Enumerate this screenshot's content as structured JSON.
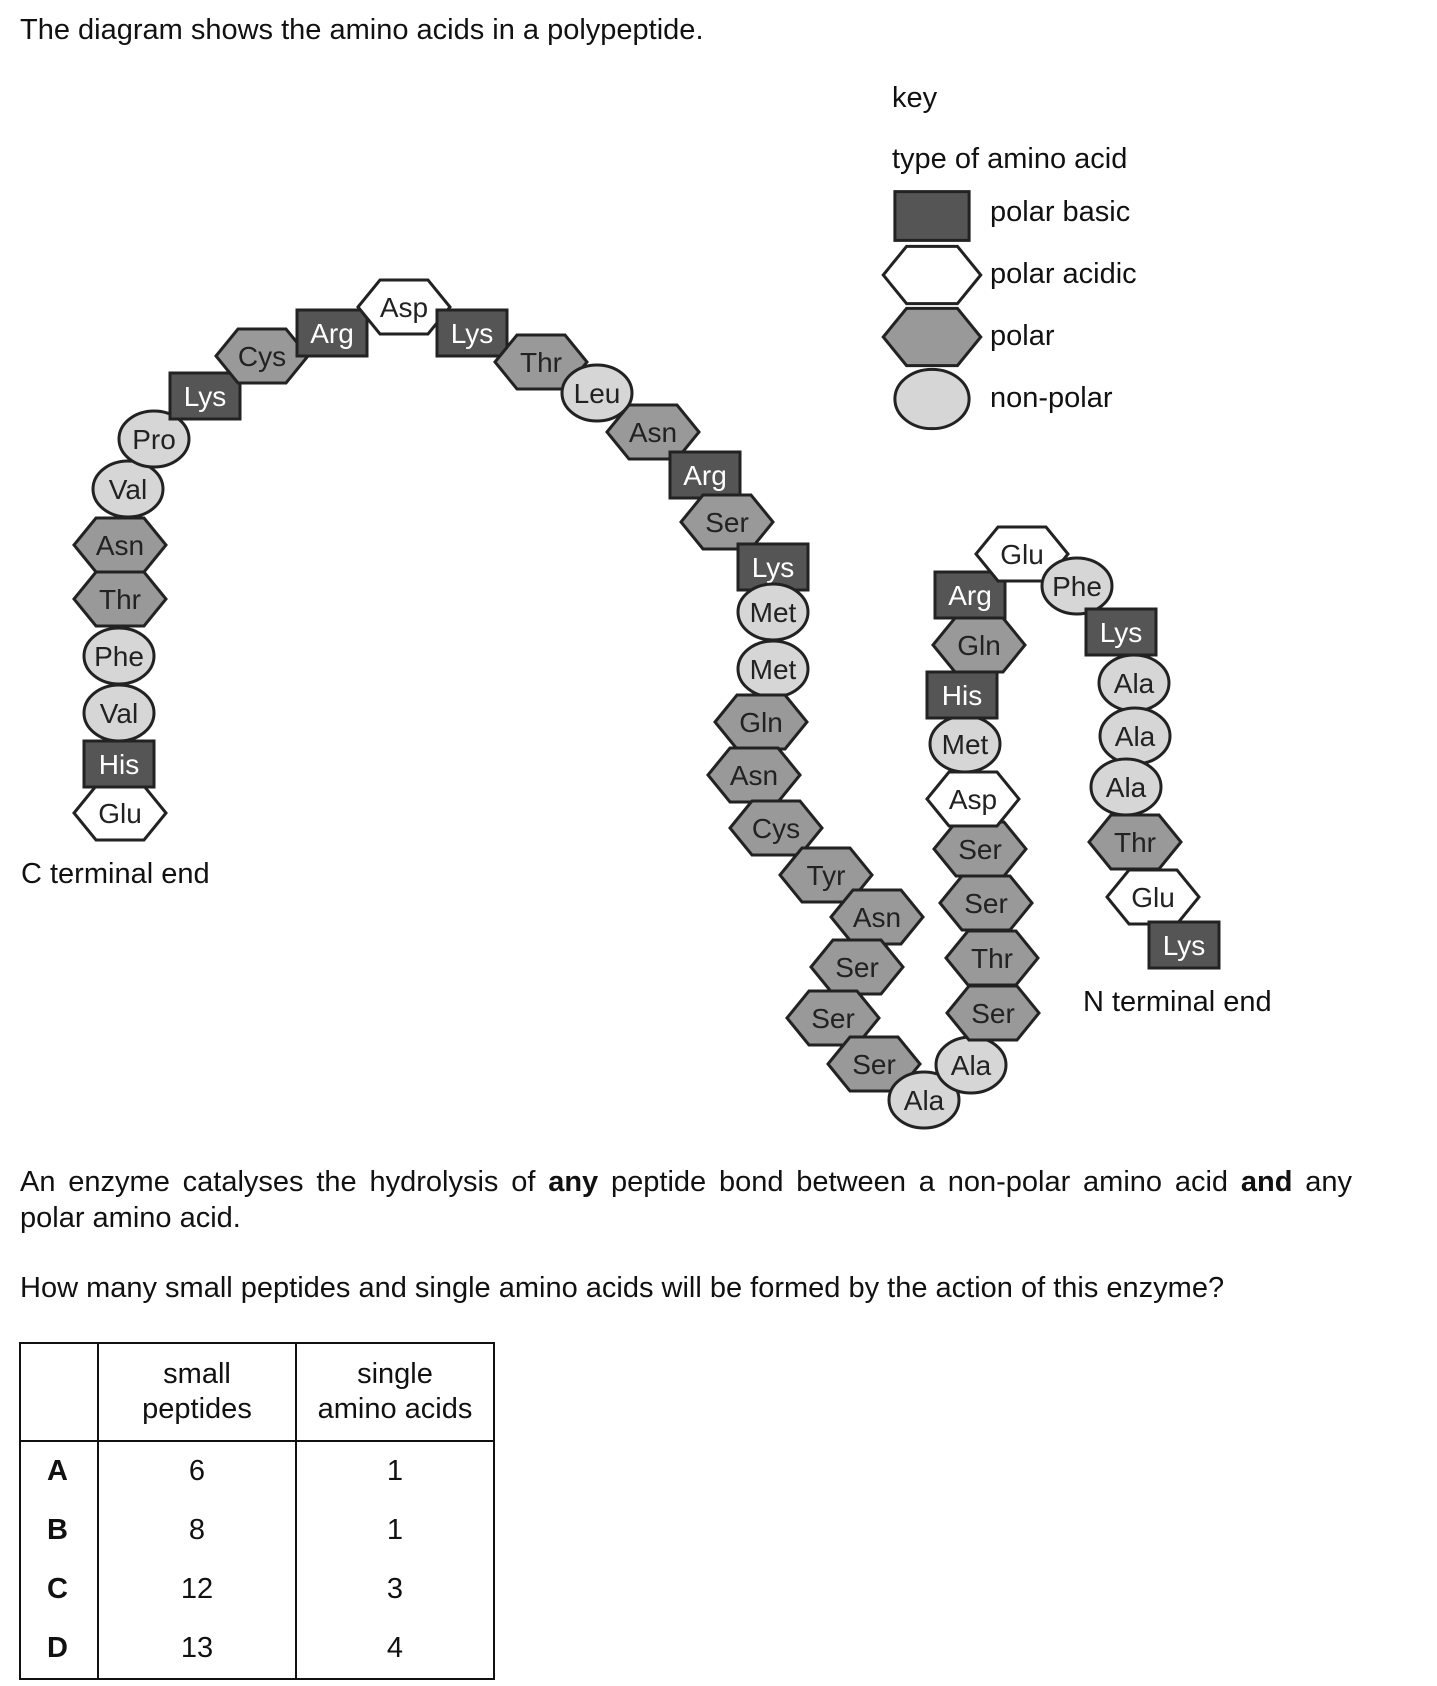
{
  "question": {
    "intro": "The diagram shows the amino acids in a polypeptide.",
    "paragraph_parts": [
      "An enzyme catalyses the hydrolysis of ",
      "any",
      " peptide bond between a non-polar amino acid ",
      "and",
      " any polar amino acid."
    ],
    "prompt": "How many small peptides and single amino acids will be formed by the action of this enzyme?"
  },
  "key": {
    "title": "key",
    "subtitle": "type of amino acid",
    "entries": [
      {
        "type": "basic",
        "label": "polar basic"
      },
      {
        "type": "acidic",
        "label": "polar acidic"
      },
      {
        "type": "polar",
        "label": "polar"
      },
      {
        "type": "nonpolar",
        "label": "non-polar"
      }
    ]
  },
  "diagram": {
    "c_terminal_label": "C terminal end",
    "n_terminal_label": "N terminal end",
    "colors": {
      "basic_fill": "#555555",
      "basic_text": "#ffffff",
      "acidic_fill": "#ffffff",
      "polar_fill": "#999999",
      "nonpolar_fill": "#d6d6d6",
      "outline": "#222222"
    },
    "chain_from_c_terminal": [
      {
        "name": "Glu",
        "type": "acidic"
      },
      {
        "name": "His",
        "type": "basic"
      },
      {
        "name": "Val",
        "type": "nonpolar"
      },
      {
        "name": "Phe",
        "type": "nonpolar"
      },
      {
        "name": "Thr",
        "type": "polar"
      },
      {
        "name": "Asn",
        "type": "polar"
      },
      {
        "name": "Val",
        "type": "nonpolar"
      },
      {
        "name": "Pro",
        "type": "nonpolar"
      },
      {
        "name": "Lys",
        "type": "basic"
      },
      {
        "name": "Cys",
        "type": "polar"
      },
      {
        "name": "Arg",
        "type": "basic"
      },
      {
        "name": "Asp",
        "type": "acidic"
      },
      {
        "name": "Lys",
        "type": "basic"
      },
      {
        "name": "Thr",
        "type": "polar"
      },
      {
        "name": "Leu",
        "type": "nonpolar"
      },
      {
        "name": "Asn",
        "type": "polar"
      },
      {
        "name": "Arg",
        "type": "basic"
      },
      {
        "name": "Ser",
        "type": "polar"
      },
      {
        "name": "Lys",
        "type": "basic"
      },
      {
        "name": "Met",
        "type": "nonpolar"
      },
      {
        "name": "Met",
        "type": "nonpolar"
      },
      {
        "name": "Gln",
        "type": "polar"
      },
      {
        "name": "Asn",
        "type": "polar"
      },
      {
        "name": "Cys",
        "type": "polar"
      },
      {
        "name": "Tyr",
        "type": "polar"
      },
      {
        "name": "Asn",
        "type": "polar"
      },
      {
        "name": "Ser",
        "type": "polar"
      },
      {
        "name": "Ser",
        "type": "polar"
      },
      {
        "name": "Ser",
        "type": "polar"
      },
      {
        "name": "Ala",
        "type": "nonpolar"
      },
      {
        "name": "Ala",
        "type": "nonpolar"
      },
      {
        "name": "Ser",
        "type": "polar"
      },
      {
        "name": "Thr",
        "type": "polar"
      },
      {
        "name": "Ser",
        "type": "polar"
      },
      {
        "name": "Ser",
        "type": "polar"
      },
      {
        "name": "Asp",
        "type": "acidic"
      },
      {
        "name": "Met",
        "type": "nonpolar"
      },
      {
        "name": "His",
        "type": "basic"
      },
      {
        "name": "Gln",
        "type": "polar"
      },
      {
        "name": "Arg",
        "type": "basic"
      },
      {
        "name": "Glu",
        "type": "acidic"
      },
      {
        "name": "Phe",
        "type": "nonpolar"
      },
      {
        "name": "Lys",
        "type": "basic"
      },
      {
        "name": "Ala",
        "type": "nonpolar"
      },
      {
        "name": "Ala",
        "type": "nonpolar"
      },
      {
        "name": "Ala",
        "type": "nonpolar"
      },
      {
        "name": "Thr",
        "type": "polar"
      },
      {
        "name": "Glu",
        "type": "acidic"
      },
      {
        "name": "Lys",
        "type": "basic"
      }
    ]
  },
  "table": {
    "headers": [
      "",
      "small\npeptides",
      "single\namino acids"
    ],
    "rows": [
      {
        "option": "A",
        "small_peptides": "6",
        "single_amino_acids": "1"
      },
      {
        "option": "B",
        "small_peptides": "8",
        "single_amino_acids": "1"
      },
      {
        "option": "C",
        "small_peptides": "12",
        "single_amino_acids": "3"
      },
      {
        "option": "D",
        "small_peptides": "13",
        "single_amino_acids": "4"
      }
    ]
  }
}
